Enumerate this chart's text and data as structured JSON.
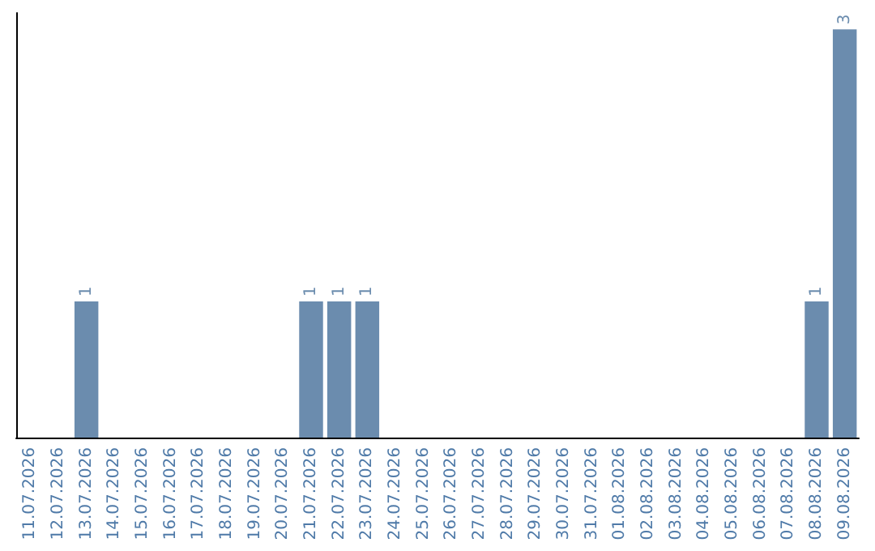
{
  "chart_data": {
    "type": "bar",
    "categories": [
      "11.07.2026",
      "12.07.2026",
      "13.07.2026",
      "14.07.2026",
      "15.07.2026",
      "16.07.2026",
      "17.07.2026",
      "18.07.2026",
      "19.07.2026",
      "20.07.2026",
      "21.07.2026",
      "22.07.2026",
      "23.07.2026",
      "24.07.2026",
      "25.07.2026",
      "26.07.2026",
      "27.07.2026",
      "28.07.2026",
      "29.07.2026",
      "30.07.2026",
      "31.07.2026",
      "01.08.2026",
      "02.08.2026",
      "03.08.2026",
      "04.08.2026",
      "05.08.2026",
      "06.08.2026",
      "07.08.2026",
      "08.08.2026",
      "09.08.2026"
    ],
    "values": [
      0,
      0,
      1,
      0,
      0,
      0,
      0,
      0,
      0,
      0,
      1,
      1,
      1,
      0,
      0,
      0,
      0,
      0,
      0,
      0,
      0,
      0,
      0,
      0,
      0,
      0,
      0,
      0,
      1,
      3
    ],
    "value_labels": [
      null,
      null,
      "1",
      null,
      null,
      null,
      null,
      null,
      null,
      null,
      "1",
      "1",
      "1",
      null,
      null,
      null,
      null,
      null,
      null,
      null,
      null,
      null,
      null,
      null,
      null,
      null,
      null,
      null,
      "1",
      "3"
    ],
    "color": "#6b8cae",
    "tick_labels": "x"
  }
}
